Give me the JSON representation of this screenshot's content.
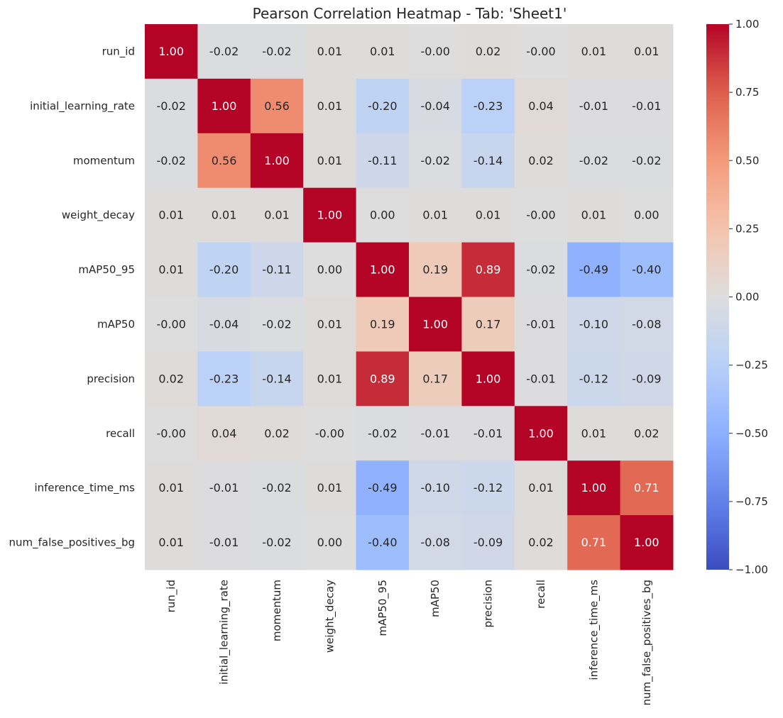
{
  "chart_data": {
    "type": "heatmap",
    "title": "Pearson Correlation Heatmap - Tab: 'Sheet1'",
    "colormap": "coolwarm",
    "vmin": -1,
    "vmax": 1,
    "labels": [
      "run_id",
      "initial_learning_rate",
      "momentum",
      "weight_decay",
      "mAP50_95",
      "mAP50",
      "precision",
      "recall",
      "inference_time_ms",
      "num_false_positives_bg"
    ],
    "values": [
      [
        1.0,
        -0.02,
        -0.02,
        0.01,
        0.01,
        -0.0,
        0.02,
        -0.0,
        0.01,
        0.01
      ],
      [
        -0.02,
        1.0,
        0.56,
        0.01,
        -0.2,
        -0.04,
        -0.23,
        0.04,
        -0.01,
        -0.01
      ],
      [
        -0.02,
        0.56,
        1.0,
        0.01,
        -0.11,
        -0.02,
        -0.14,
        0.02,
        -0.02,
        -0.02
      ],
      [
        0.01,
        0.01,
        0.01,
        1.0,
        0.0,
        0.01,
        0.01,
        -0.0,
        0.01,
        0.0
      ],
      [
        0.01,
        -0.2,
        -0.11,
        0.0,
        1.0,
        0.19,
        0.89,
        -0.02,
        -0.49,
        -0.4
      ],
      [
        -0.0,
        -0.04,
        -0.02,
        0.01,
        0.19,
        1.0,
        0.17,
        -0.01,
        -0.1,
        -0.08
      ],
      [
        0.02,
        -0.23,
        -0.14,
        0.01,
        0.89,
        0.17,
        1.0,
        -0.01,
        -0.12,
        -0.09
      ],
      [
        -0.0,
        0.04,
        0.02,
        -0.0,
        -0.02,
        -0.01,
        -0.01,
        1.0,
        0.01,
        0.02
      ],
      [
        0.01,
        -0.01,
        -0.02,
        0.01,
        -0.49,
        -0.1,
        -0.12,
        0.01,
        1.0,
        0.71
      ],
      [
        0.01,
        -0.01,
        -0.02,
        0.0,
        -0.4,
        -0.08,
        -0.09,
        0.02,
        0.71,
        1.0
      ]
    ],
    "annotations": [
      [
        "1.00",
        "-0.02",
        "-0.02",
        "0.01",
        "0.01",
        "-0.00",
        "0.02",
        "-0.00",
        "0.01",
        "0.01"
      ],
      [
        "-0.02",
        "1.00",
        "0.56",
        "0.01",
        "-0.20",
        "-0.04",
        "-0.23",
        "0.04",
        "-0.01",
        "-0.01"
      ],
      [
        "-0.02",
        "0.56",
        "1.00",
        "0.01",
        "-0.11",
        "-0.02",
        "-0.14",
        "0.02",
        "-0.02",
        "-0.02"
      ],
      [
        "0.01",
        "0.01",
        "0.01",
        "1.00",
        "0.00",
        "0.01",
        "0.01",
        "-0.00",
        "0.01",
        "0.00"
      ],
      [
        "0.01",
        "-0.20",
        "-0.11",
        "0.00",
        "1.00",
        "0.19",
        "0.89",
        "-0.02",
        "-0.49",
        "-0.40"
      ],
      [
        "-0.00",
        "-0.04",
        "-0.02",
        "0.01",
        "0.19",
        "1.00",
        "0.17",
        "-0.01",
        "-0.10",
        "-0.08"
      ],
      [
        "0.02",
        "-0.23",
        "-0.14",
        "0.01",
        "0.89",
        "0.17",
        "1.00",
        "-0.01",
        "-0.12",
        "-0.09"
      ],
      [
        "-0.00",
        "0.04",
        "0.02",
        "-0.00",
        "-0.02",
        "-0.01",
        "-0.01",
        "1.00",
        "0.01",
        "0.02"
      ],
      [
        "0.01",
        "-0.01",
        "-0.02",
        "0.01",
        "-0.49",
        "-0.10",
        "-0.12",
        "0.01",
        "1.00",
        "0.71"
      ],
      [
        "0.01",
        "-0.01",
        "-0.02",
        "0.00",
        "-0.40",
        "-0.08",
        "-0.09",
        "0.02",
        "0.71",
        "1.00"
      ]
    ],
    "colorbar_ticks": [
      1.0,
      0.75,
      0.5,
      0.25,
      0.0,
      -0.25,
      -0.5,
      -0.75,
      -1.0
    ],
    "colorbar_tick_labels": [
      "1.00",
      "0.75",
      "0.50",
      "0.25",
      "0.00",
      "−0.25",
      "−0.50",
      "−0.75",
      "−1.00"
    ]
  }
}
